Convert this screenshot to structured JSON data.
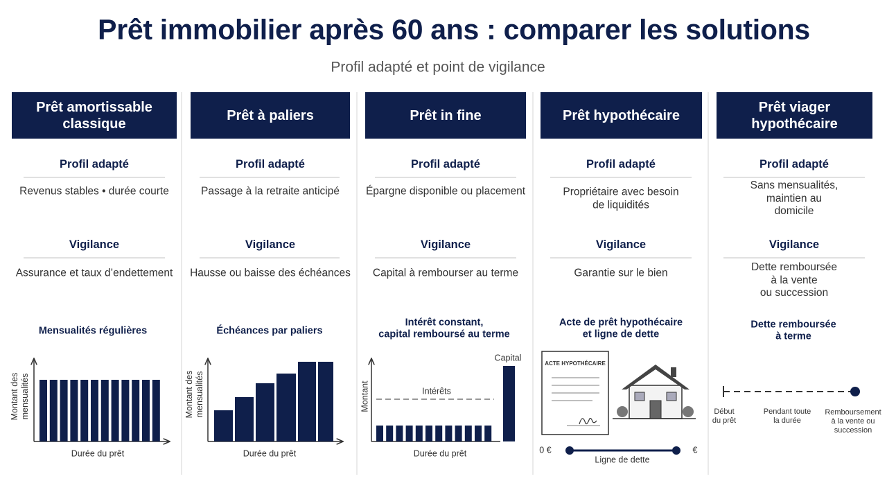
{
  "header": {
    "title": "Prêt immobilier après 60 ans : comparer les solutions",
    "subtitle": "Profil adapté et point de vigilance"
  },
  "columns": [
    {
      "title": "Prêt amortissable\nclassique",
      "profile_label": "Profil adapté",
      "profile": "Revenus stables • durée courte",
      "vigilance_label": "Vigilance",
      "vigilance": "Assurance et taux d’endettement",
      "chart": {
        "title": "Mensualités régulières",
        "y_label": "Montant des\nmensualités",
        "x_label": "Durée du prêt"
      }
    },
    {
      "title": "Prêt à paliers",
      "profile_label": "Profil adapté",
      "profile": "Passage à la retraite anticipé",
      "vigilance_label": "Vigilance",
      "vigilance": "Hausse ou baisse des échéances",
      "chart": {
        "title": "Échéances par paliers",
        "y_label": "Montant des\nmensualités",
        "x_label": "Durée du prêt"
      }
    },
    {
      "title": "Prêt in fine",
      "profile_label": "Profil adapté",
      "profile": "Épargne disponible ou placement",
      "vigilance_label": "Vigilance",
      "vigilance": "Capital à rembourser au terme",
      "chart": {
        "title": "Intérêt constant,\ncapital remboursé au terme",
        "y_label": "Montant",
        "x_label": "Durée du prêt",
        "interest_label": "Intérêts",
        "capital_label": "Capital"
      }
    },
    {
      "title": "Prêt hypothécaire",
      "profile_label": "Profil adapté",
      "profile": "Propriétaire avec besoin\nde liquidités",
      "vigilance_label": "Vigilance",
      "vigilance": "Garantie sur le bien",
      "chart": {
        "title": "Acte de prêt hypothécaire\net ligne de dette",
        "document_label": "ACTE HYPOTHÉCAIRE",
        "start_label": "0 €",
        "end_label": "€",
        "line_label": "Ligne de dette"
      }
    },
    {
      "title": "Prêt viager\nhypothécaire",
      "profile_label": "Profil adapté",
      "profile": "Sans mensualités,\nmaintien au domicile",
      "vigilance_label": "Vigilance",
      "vigilance": "Dette remboursée à la vente\nou succession",
      "chart": {
        "title": "Dette remboursée à terme",
        "start_label": "Début\ndu prêt",
        "middle_label": "Pendant toute\nla durée",
        "end_label": "Remboursement\nà la vente ou\nsuccession"
      }
    }
  ]
}
